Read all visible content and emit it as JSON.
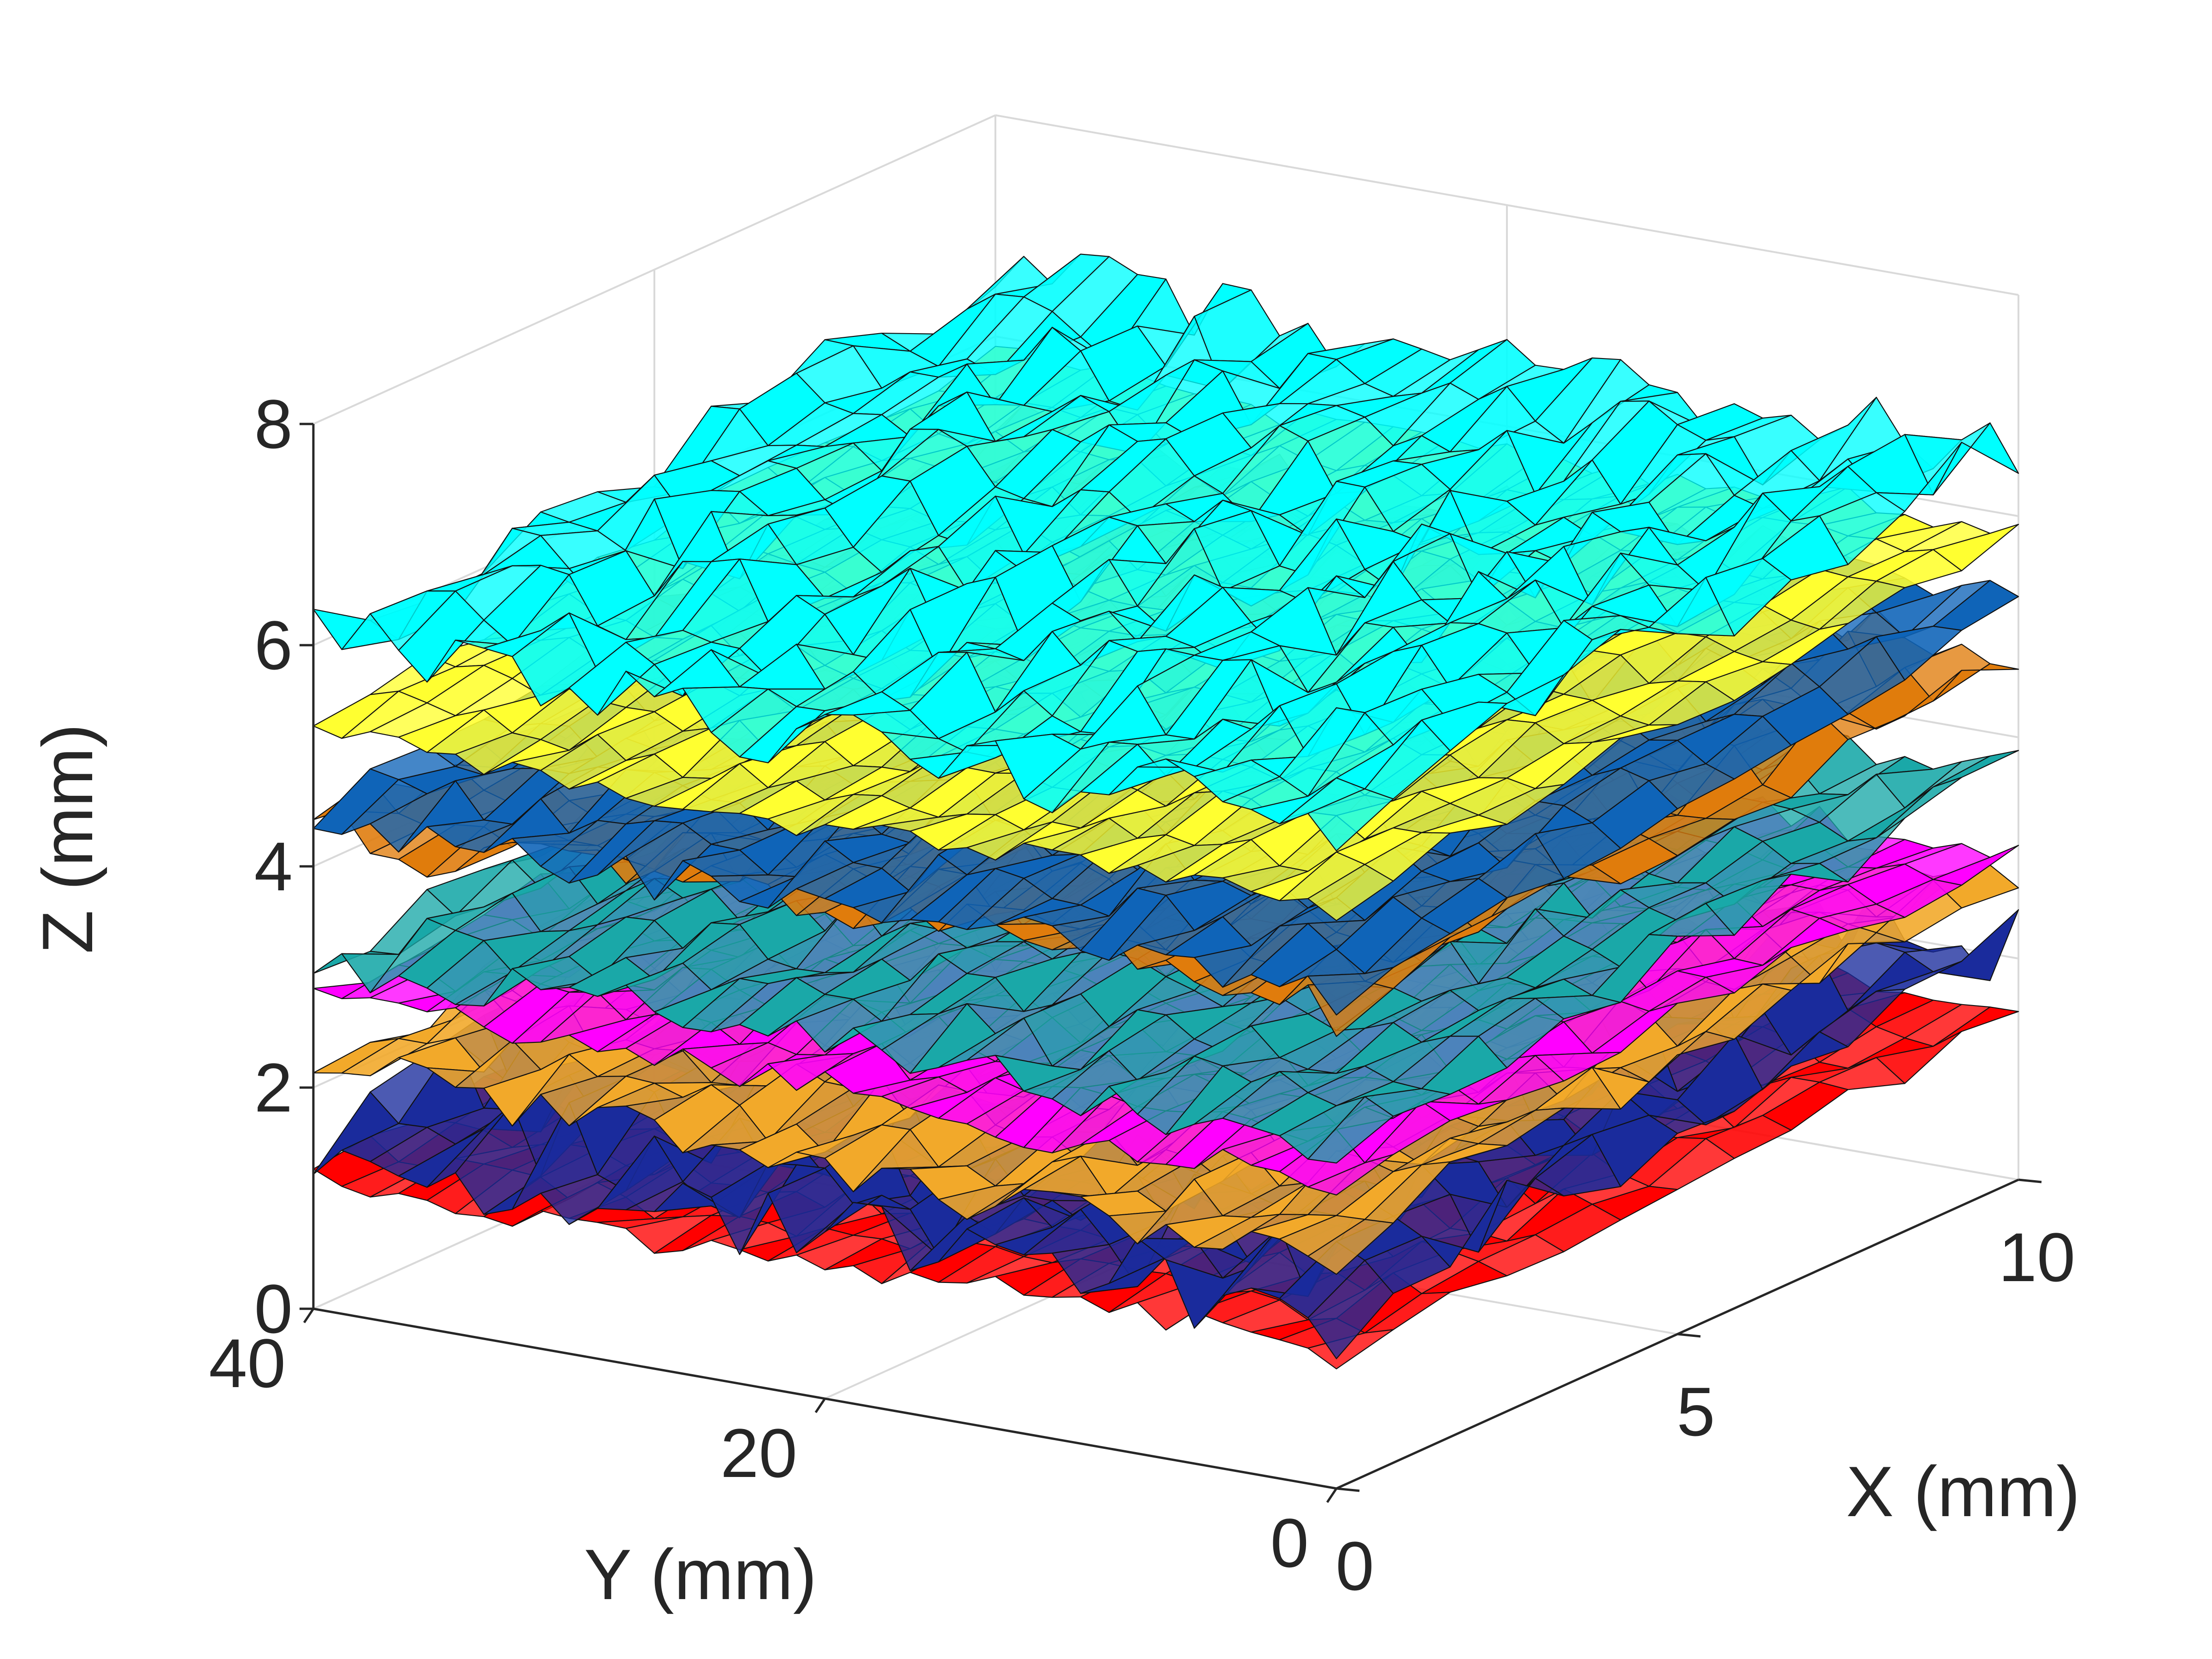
{
  "chart_data": {
    "type": "surface",
    "xlabel": "X (mm)",
    "ylabel": "Y (mm)",
    "zlabel": "Z (mm)",
    "xlim": [
      0,
      10
    ],
    "ylim": [
      0,
      40
    ],
    "zlim": [
      0,
      8
    ],
    "x_ticks": [
      0,
      5,
      10
    ],
    "y_ticks": [
      0,
      20,
      40
    ],
    "z_ticks": [
      0,
      2,
      4,
      6,
      8
    ],
    "grid": true,
    "series": [
      {
        "color": "#ff0000",
        "base_z": 1.2,
        "tilt": 0.3,
        "roughness": 0.03
      },
      {
        "color": "#1a2b9c",
        "base_z": 1.5,
        "tilt": 0.55,
        "roughness": 0.1
      },
      {
        "color": "#f2a92a",
        "base_z": 2.1,
        "tilt": 0.6,
        "roughness": 0.06
      },
      {
        "color": "#ff00ff",
        "base_z": 2.8,
        "tilt": 0.2,
        "roughness": 0.04
      },
      {
        "color": "#1aa8a8",
        "base_z": 3.2,
        "tilt": 0.6,
        "roughness": 0.05
      },
      {
        "color": "#e07c0c",
        "base_z": 4.4,
        "tilt": 0.45,
        "roughness": 0.06
      },
      {
        "color": "#0f64b8",
        "base_z": 4.5,
        "tilt": 0.8,
        "roughness": 0.05
      },
      {
        "color": "#ffff30",
        "base_z": 5.2,
        "tilt": 0.6,
        "roughness": 0.03
      },
      {
        "color": "#00ffff",
        "base_z": 6.0,
        "tilt": 0.55,
        "roughness": 0.08
      }
    ]
  }
}
